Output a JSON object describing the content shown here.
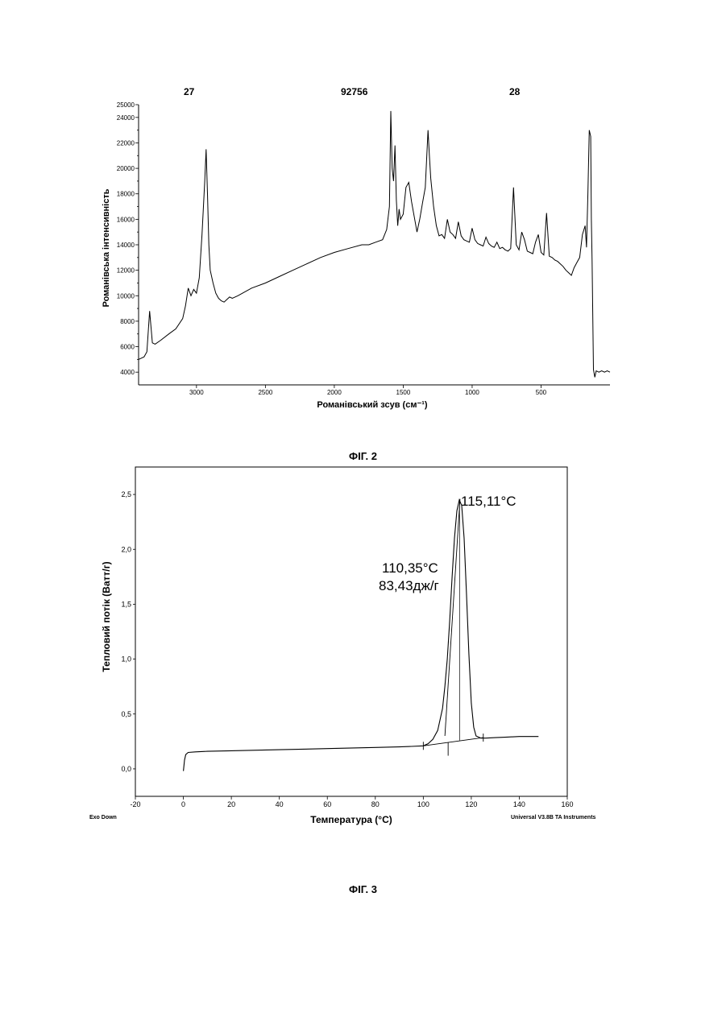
{
  "header": {
    "left": "27",
    "center": "92756",
    "right": "28"
  },
  "fig2_caption": "ФІГ. 2",
  "fig3_caption": "ФІГ. 3",
  "chart_data": [
    {
      "type": "line",
      "xlabel": "Романівський зсув (см⁻¹)",
      "ylabel": "Романівська інтенсивність",
      "xlim": [
        3420,
        0
      ],
      "ylim": [
        3000,
        25000
      ],
      "x_ticks": [
        "3000",
        "2500",
        "2000",
        "1500",
        "1000",
        "500"
      ],
      "y_ticks": [
        "4000",
        "5000",
        "6000",
        "7000",
        "8000",
        "9000",
        "10000",
        "11000",
        "12000",
        "13000",
        "14000",
        "15000",
        "16000",
        "17000",
        "18000",
        "19000",
        "20000",
        "21000",
        "22000",
        "23000",
        "24000",
        "25000"
      ],
      "y_tick_labels": [
        "4000",
        "6000",
        "8000",
        "10000",
        "12000",
        "14000",
        "16000",
        "18000",
        "20000",
        "22000",
        "24000",
        "25000"
      ],
      "x": [
        3420,
        3400,
        3380,
        3360,
        3340,
        3320,
        3300,
        3260,
        3200,
        3150,
        3100,
        3080,
        3060,
        3040,
        3020,
        3000,
        2980,
        2960,
        2940,
        2930,
        2920,
        2910,
        2900,
        2880,
        2860,
        2840,
        2820,
        2800,
        2780,
        2760,
        2740,
        2700,
        2600,
        2500,
        2400,
        2300,
        2200,
        2100,
        2000,
        1900,
        1800,
        1750,
        1700,
        1650,
        1620,
        1600,
        1590,
        1580,
        1570,
        1560,
        1550,
        1540,
        1530,
        1520,
        1500,
        1480,
        1460,
        1440,
        1420,
        1400,
        1380,
        1360,
        1340,
        1320,
        1310,
        1300,
        1280,
        1260,
        1240,
        1220,
        1200,
        1180,
        1160,
        1140,
        1120,
        1100,
        1080,
        1060,
        1040,
        1020,
        1000,
        980,
        960,
        940,
        920,
        900,
        880,
        860,
        840,
        820,
        800,
        780,
        760,
        740,
        720,
        700,
        680,
        660,
        640,
        620,
        600,
        580,
        560,
        540,
        520,
        500,
        480,
        460,
        440,
        420,
        400,
        380,
        360,
        340,
        320,
        300,
        280,
        260,
        240,
        220,
        200,
        180,
        170,
        160,
        150,
        140,
        135,
        130,
        120,
        110,
        100,
        80,
        60,
        40,
        20,
        0
      ],
      "y": [
        5000,
        5100,
        5200,
        5600,
        8800,
        6300,
        6200,
        6500,
        7000,
        7400,
        8200,
        9200,
        10600,
        10000,
        10500,
        10200,
        11400,
        14800,
        19000,
        21500,
        18000,
        14000,
        12000,
        11000,
        10200,
        9800,
        9600,
        9500,
        9700,
        9900,
        9800,
        10000,
        10600,
        11000,
        11500,
        12000,
        12500,
        13000,
        13400,
        13700,
        14000,
        14000,
        14200,
        14400,
        15200,
        17000,
        24500,
        20000,
        19000,
        21800,
        17500,
        15500,
        16800,
        16000,
        16400,
        18500,
        18900,
        17400,
        16200,
        15000,
        16000,
        17300,
        18500,
        23000,
        21000,
        19200,
        17000,
        15500,
        14700,
        14800,
        14500,
        16000,
        15000,
        14800,
        14500,
        15800,
        14700,
        14400,
        14300,
        14200,
        15300,
        14400,
        14100,
        14000,
        13900,
        14600,
        14100,
        13900,
        13800,
        14200,
        13700,
        13800,
        13600,
        13500,
        13700,
        18500,
        14000,
        13600,
        15000,
        14400,
        13500,
        13400,
        13300,
        14200,
        14800,
        13400,
        13200,
        16500,
        13100,
        13000,
        12800,
        12700,
        12500,
        12300,
        12000,
        11800,
        11600,
        12200,
        12600,
        13000,
        14800,
        15500,
        13800,
        18000,
        23000,
        22500,
        16000,
        12800,
        4200,
        3600,
        4100,
        4000,
        4100,
        4000,
        4100,
        4000
      ]
    },
    {
      "type": "line",
      "xlabel": "Температура (°C)",
      "ylabel": "Тепловий потік (Ватт/г)",
      "xlim": [
        -20,
        160
      ],
      "ylim": [
        -0.25,
        2.75
      ],
      "x_ticks": [
        "-20",
        "0",
        "20",
        "40",
        "60",
        "80",
        "100",
        "120",
        "140",
        "160"
      ],
      "y_ticks": [
        "0,0",
        "0,5",
        "1,0",
        "1,5",
        "2,0",
        "2,5"
      ],
      "footer_left": "Exo Down",
      "footer_right": "Universal V3.8B TA Instruments",
      "annotations": [
        "115,11°C",
        "110,35°C",
        "83,43дж/г"
      ],
      "x": [
        0,
        0.5,
        1,
        2,
        5,
        10,
        20,
        40,
        60,
        80,
        90,
        95,
        100,
        102,
        104,
        106,
        108,
        109,
        110,
        111,
        112,
        113,
        114,
        115,
        116,
        117,
        118,
        119,
        120,
        121,
        122,
        124,
        126,
        130,
        135,
        140,
        145,
        148
      ],
      "y": [
        -0.02,
        0.08,
        0.13,
        0.15,
        0.155,
        0.16,
        0.165,
        0.175,
        0.185,
        0.195,
        0.2,
        0.205,
        0.21,
        0.23,
        0.27,
        0.35,
        0.55,
        0.75,
        1.0,
        1.35,
        1.75,
        2.1,
        2.35,
        2.45,
        2.4,
        2.1,
        1.6,
        1.05,
        0.6,
        0.38,
        0.3,
        0.28,
        0.28,
        0.285,
        0.29,
        0.295,
        0.295,
        0.295
      ]
    }
  ]
}
